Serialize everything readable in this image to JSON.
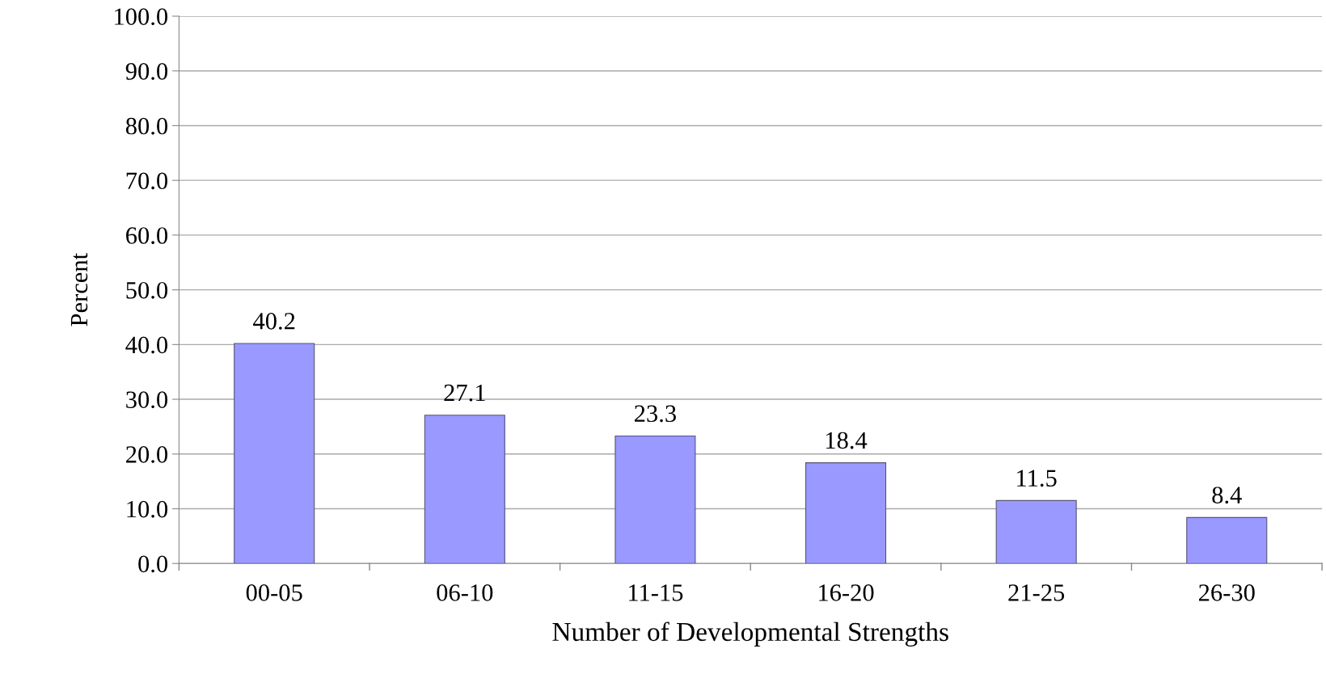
{
  "chart_data": {
    "type": "bar",
    "xlabel": "Number of Developmental Strengths",
    "ylabel": "Percent",
    "categories": [
      "00-05",
      "06-10",
      "11-15",
      "16-20",
      "21-25",
      "26-30"
    ],
    "values": [
      40.2,
      27.1,
      23.3,
      18.4,
      11.5,
      8.4
    ],
    "color": "#9999ff",
    "ylim": [
      0,
      100
    ],
    "yticks": [
      {
        "value": 0,
        "label": "0.0"
      },
      {
        "value": 10,
        "label": "10.0"
      },
      {
        "value": 20,
        "label": "20.0"
      },
      {
        "value": 30,
        "label": "30.0"
      },
      {
        "value": 40,
        "label": "40.0"
      },
      {
        "value": 50,
        "label": "50.0"
      },
      {
        "value": 60,
        "label": "60.0"
      },
      {
        "value": 70,
        "label": "70.0"
      },
      {
        "value": 80,
        "label": "80.0"
      },
      {
        "value": 90,
        "label": "90.0"
      },
      {
        "value": 100,
        "label": "100.0"
      }
    ],
    "grid": "y",
    "data_labels": true,
    "legend": false
  }
}
